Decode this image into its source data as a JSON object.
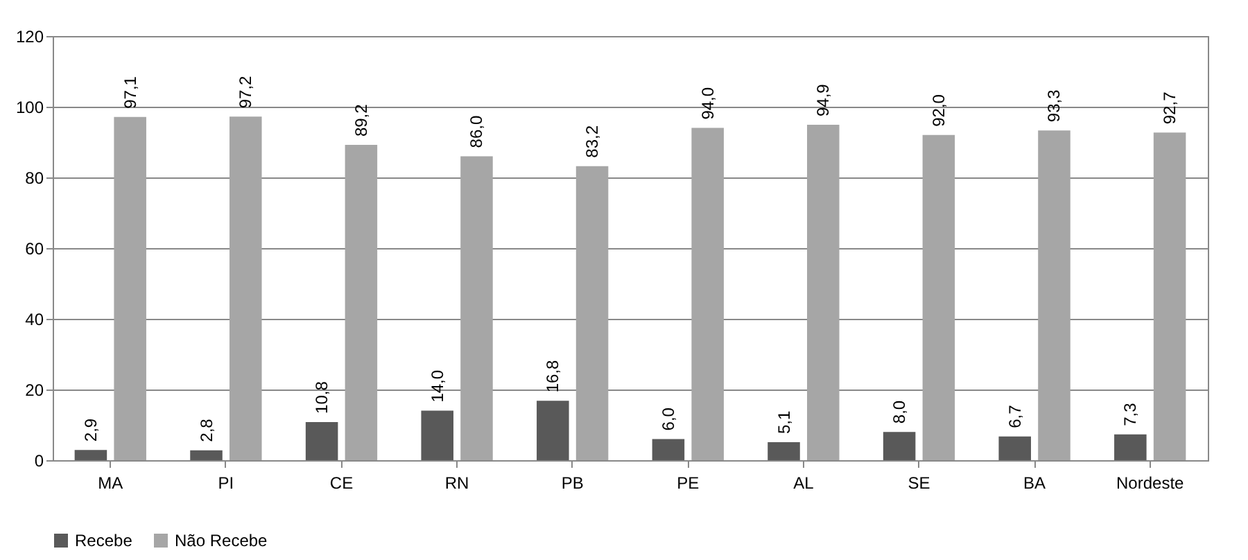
{
  "chart_data": {
    "type": "bar",
    "categories": [
      "MA",
      "PI",
      "CE",
      "RN",
      "PB",
      "PE",
      "AL",
      "SE",
      "BA",
      "Nordeste"
    ],
    "series": [
      {
        "name": "Recebe",
        "color": "#595959",
        "values": [
          2.9,
          2.8,
          10.8,
          14.0,
          16.8,
          6.0,
          5.1,
          8.0,
          6.7,
          7.3
        ],
        "value_labels": [
          "2,9",
          "2,8",
          "10,8",
          "14,0",
          "16,8",
          "6,0",
          "5,1",
          "8,0",
          "6,7",
          "7,3"
        ]
      },
      {
        "name": "Não Recebe",
        "color": "#a6a6a6",
        "values": [
          97.1,
          97.2,
          89.2,
          86.0,
          83.2,
          94.0,
          94.9,
          92.0,
          93.3,
          92.7
        ],
        "value_labels": [
          "97,1",
          "97,2",
          "89,2",
          "86,0",
          "83,2",
          "94,0",
          "94,9",
          "92,0",
          "93,3",
          "92,7"
        ]
      }
    ],
    "ylim": [
      0,
      120
    ],
    "yticks": [
      0,
      20,
      40,
      60,
      80,
      100,
      120
    ],
    "grid": "y",
    "legend": "bottom"
  }
}
